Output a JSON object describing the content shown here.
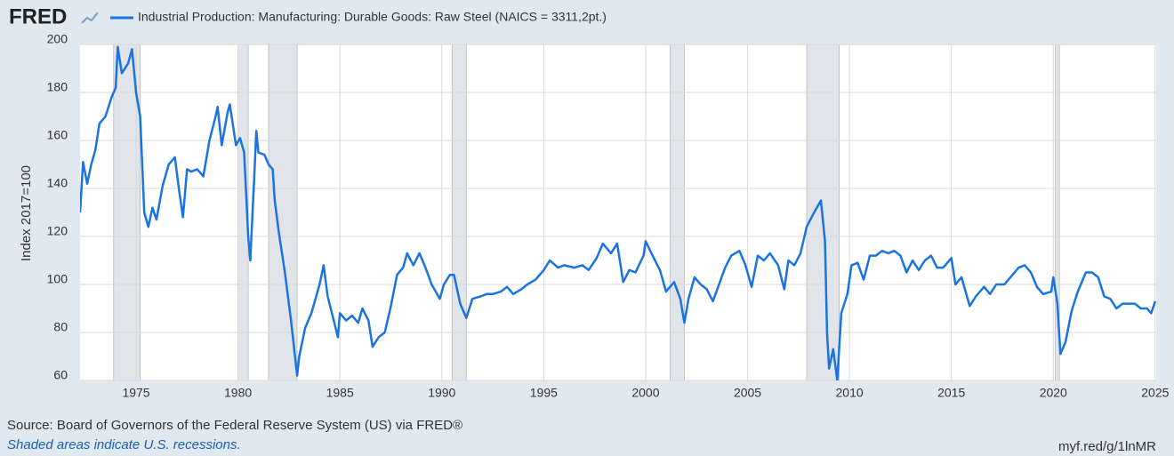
{
  "chart_data": {
    "type": "line",
    "logo": "FRED",
    "y_label": "Index 2017=100",
    "source": "Source: Board of Governors of the Federal Reserve System (US) via FRED®",
    "note": "Shaded areas indicate U.S. recessions.",
    "url": "myf.red/g/1lnMR",
    "xlim": [
      1972.25,
      2025.05
    ],
    "xticks": [
      1975,
      1980,
      1985,
      1990,
      1995,
      2000,
      2005,
      2010,
      2015,
      2020,
      2025
    ],
    "ylim": [
      60,
      200
    ],
    "yticks": [
      60,
      80,
      100,
      120,
      140,
      160,
      180,
      200
    ],
    "grid": true,
    "recessions": [
      [
        1973.9,
        1975.2
      ],
      [
        1980.0,
        1980.5
      ],
      [
        1981.5,
        1982.9
      ],
      [
        1990.5,
        1991.2
      ],
      [
        2001.2,
        2001.9
      ],
      [
        2007.9,
        2009.5
      ],
      [
        2020.1,
        2020.3
      ]
    ],
    "x": [
      1972.25,
      1972.4,
      1972.6,
      1972.8,
      1973.0,
      1973.2,
      1973.5,
      1973.8,
      1974.0,
      1974.1,
      1974.3,
      1974.6,
      1974.8,
      1975.0,
      1975.2,
      1975.4,
      1975.6,
      1975.8,
      1976.0,
      1976.3,
      1976.6,
      1976.9,
      1977.1,
      1977.3,
      1977.5,
      1977.7,
      1978.0,
      1978.3,
      1978.6,
      1978.9,
      1979.0,
      1979.2,
      1979.5,
      1979.6,
      1979.9,
      1980.1,
      1980.3,
      1980.5,
      1980.6,
      1980.8,
      1980.9,
      1981.0,
      1981.3,
      1981.5,
      1981.7,
      1981.8,
      1982.0,
      1982.3,
      1982.6,
      1982.9,
      1983.0,
      1983.3,
      1983.6,
      1983.9,
      1984.0,
      1984.2,
      1984.4,
      1984.7,
      1984.9,
      1985.0,
      1985.3,
      1985.6,
      1985.9,
      1986.1,
      1986.4,
      1986.6,
      1986.9,
      1987.2,
      1987.5,
      1987.8,
      1988.1,
      1988.3,
      1988.6,
      1988.9,
      1989.2,
      1989.5,
      1989.9,
      1990.1,
      1990.4,
      1990.6,
      1990.9,
      1991.2,
      1991.5,
      1991.9,
      1992.2,
      1992.5,
      1992.9,
      1993.2,
      1993.5,
      1993.9,
      1994.2,
      1994.6,
      1995.0,
      1995.3,
      1995.7,
      1996.0,
      1996.5,
      1996.9,
      1997.2,
      1997.6,
      1997.9,
      1998.3,
      1998.6,
      1998.9,
      1999.2,
      1999.5,
      1999.9,
      2000.0,
      2000.4,
      2000.7,
      2001.0,
      2001.4,
      2001.7,
      2001.9,
      2002.1,
      2002.4,
      2002.7,
      2003.0,
      2003.3,
      2003.6,
      2003.9,
      2004.2,
      2004.6,
      2004.9,
      2005.2,
      2005.5,
      2005.8,
      2006.1,
      2006.5,
      2006.8,
      2007.0,
      2007.3,
      2007.6,
      2007.9,
      2008.2,
      2008.6,
      2008.8,
      2008.9,
      2009.0,
      2009.2,
      2009.4,
      2009.6,
      2009.9,
      2010.1,
      2010.4,
      2010.7,
      2011.0,
      2011.3,
      2011.6,
      2011.9,
      2012.2,
      2012.5,
      2012.8,
      2013.1,
      2013.4,
      2013.7,
      2014.0,
      2014.3,
      2014.6,
      2015.0,
      2015.2,
      2015.5,
      2015.9,
      2016.2,
      2016.6,
      2016.9,
      2017.2,
      2017.6,
      2017.9,
      2018.3,
      2018.6,
      2018.9,
      2019.2,
      2019.5,
      2019.9,
      2020.0,
      2020.2,
      2020.35,
      2020.6,
      2020.9,
      2021.2,
      2021.6,
      2021.9,
      2022.2,
      2022.5,
      2022.8,
      2023.1,
      2023.4,
      2023.7,
      2024.0,
      2024.3,
      2024.6,
      2024.8,
      2025.0
    ],
    "series": [
      {
        "name": "Industrial Production: Manufacturing: Durable Goods: Raw Steel (NAICS = 3311,2pt.)",
        "color": "#1a73e0",
        "values": [
          130,
          151,
          142,
          150,
          156,
          167,
          170,
          178,
          182,
          199,
          188,
          192,
          198,
          180,
          170,
          130,
          124,
          132,
          127,
          141,
          150,
          153,
          140,
          128,
          148,
          147,
          148,
          145,
          160,
          170,
          174,
          158,
          172,
          175,
          158,
          161,
          155,
          120,
          110,
          145,
          164,
          155,
          154,
          150,
          148,
          135,
          122,
          105,
          85,
          62,
          70,
          82,
          88,
          97,
          100,
          108,
          95,
          85,
          78,
          88,
          85,
          87,
          84,
          90,
          85,
          74,
          78,
          80,
          91,
          104,
          107,
          113,
          108,
          113,
          107,
          100,
          94,
          100,
          104,
          104,
          92,
          86,
          94,
          95,
          96,
          96,
          97,
          99,
          96,
          98,
          100,
          102,
          106,
          110,
          107,
          108,
          107,
          108,
          106,
          111,
          117,
          113,
          117,
          101,
          106,
          105,
          112,
          118,
          111,
          106,
          97,
          101,
          94,
          84,
          94,
          103,
          100,
          98,
          93,
          100,
          107,
          112,
          114,
          108,
          99,
          112,
          110,
          113,
          108,
          98,
          110,
          108,
          113,
          124,
          129,
          135,
          118,
          80,
          65,
          73,
          60,
          88,
          96,
          108,
          109,
          102,
          112,
          112,
          114,
          113,
          114,
          112,
          105,
          110,
          106,
          110,
          112,
          107,
          107,
          111,
          100,
          103,
          91,
          95,
          99,
          96,
          100,
          100,
          103,
          107,
          108,
          105,
          99,
          96,
          97,
          103,
          92,
          71,
          76,
          89,
          97,
          105,
          105,
          103,
          95,
          94,
          90,
          92,
          92,
          92,
          90,
          90,
          88,
          93
        ]
      }
    ]
  }
}
